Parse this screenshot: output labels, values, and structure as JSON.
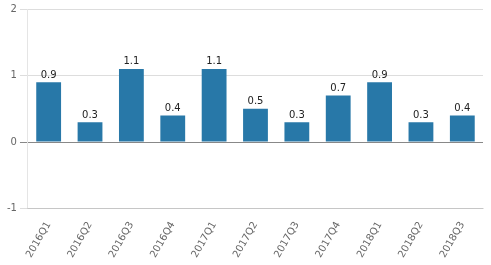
{
  "chart_data": {
    "type": "bar",
    "categories": [
      "2016Q1",
      "2016Q2",
      "2016Q3",
      "2016Q4",
      "2017Q1",
      "2017Q2",
      "2017Q3",
      "2017Q4",
      "2018Q1",
      "2018Q2",
      "2018Q3"
    ],
    "values": [
      0.9,
      0.3,
      1.1,
      0.4,
      1.1,
      0.5,
      0.3,
      0.7,
      0.9,
      0.3,
      0.4
    ],
    "color": "#2878a8",
    "ylim": [
      -1,
      2
    ],
    "yticks": [
      -1,
      0,
      1,
      2
    ],
    "grid": true,
    "data_labels": true
  }
}
